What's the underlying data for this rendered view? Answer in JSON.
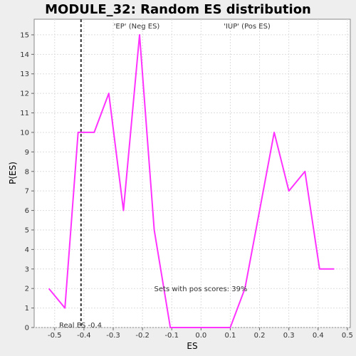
{
  "chart_data": {
    "type": "line",
    "title": "MODULE_32: Random ES distribution",
    "xlabel": "ES",
    "ylabel": "P(ES)",
    "xlim": [
      -0.57,
      0.51
    ],
    "ylim": [
      0,
      15.8
    ],
    "x_ticks": [
      -0.5,
      -0.4,
      -0.3,
      -0.2,
      -0.1,
      0.0,
      0.1,
      0.2,
      0.3,
      0.4,
      0.5
    ],
    "x_tick_labels": [
      "-0.5",
      "-0.4",
      "-0.3",
      "-0.2",
      "-0.1",
      "0.0",
      "0.1",
      "0.2",
      "0.3",
      "0.4",
      "0.5"
    ],
    "y_ticks": [
      0,
      1,
      2,
      3,
      4,
      5,
      6,
      7,
      8,
      9,
      10,
      11,
      12,
      13,
      14,
      15
    ],
    "y_tick_labels": [
      "0",
      "1",
      "2",
      "3",
      "4",
      "5",
      "6",
      "7",
      "8",
      "9",
      "10",
      "11",
      "12",
      "13",
      "14",
      "15"
    ],
    "grid": true,
    "series": [
      {
        "color": "#ff33ff",
        "x": [
          -0.52,
          -0.465,
          -0.42,
          -0.365,
          -0.315,
          -0.265,
          -0.21,
          -0.16,
          -0.105,
          -0.055,
          0.0,
          0.05,
          0.1,
          0.15,
          0.2,
          0.25,
          0.3,
          0.355,
          0.405,
          0.455
        ],
        "y": [
          2,
          1,
          10,
          10,
          12,
          6,
          15,
          5,
          0,
          0,
          0,
          0,
          0,
          2,
          6,
          10,
          7,
          8,
          3,
          3
        ]
      }
    ],
    "real_es": -0.41,
    "real_es_label": "Real ES -0.4",
    "annotations": {
      "neg_label": "'EP' (Neg ES)",
      "pos_label": "'IUP' (Pos ES)",
      "pos_scores_label": "Sets with pos scores: 39%"
    },
    "colors": {
      "background": "#eeeeee",
      "plot_background": "#ffffff",
      "grid": "#dddddd",
      "neg_label": "#3333cc",
      "pos_label": "#cc3333",
      "real_es_line": "#333333"
    }
  }
}
